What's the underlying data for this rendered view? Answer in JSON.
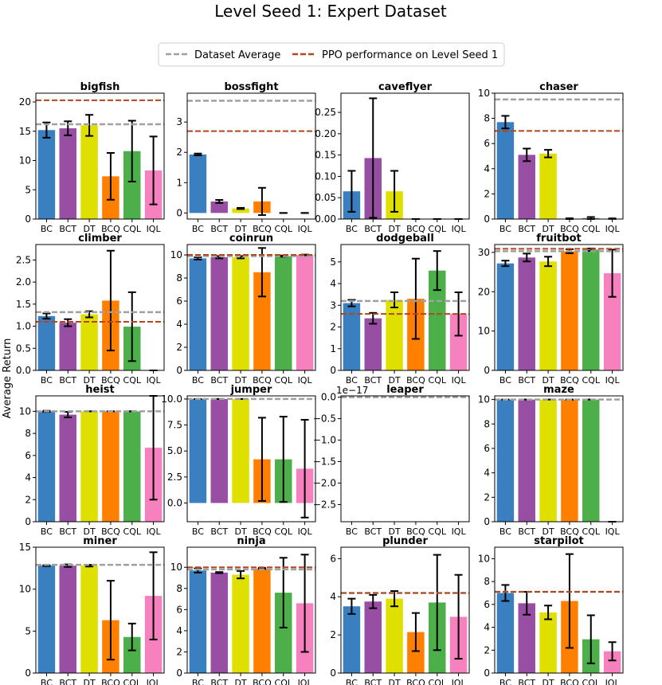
{
  "figure": {
    "title": "Level Seed 1: Expert Dataset",
    "ylabel": "Average Return",
    "legend": {
      "dataset_avg_label": "Dataset Average",
      "ppo_label": "PPO performance on Level Seed 1",
      "placement": "top-center"
    }
  },
  "colors": {
    "BC": "#3a7fbf",
    "BCT": "#984ea3",
    "DT": "#e0e000",
    "BCQ": "#ff7f00",
    "CQL": "#4daf4a",
    "IQL": "#f781bf",
    "dataset_avg_line": "#a0a0a0",
    "ppo_line": "#b5451b"
  },
  "chart_data": [
    {
      "type": "bar",
      "title": "bigfish",
      "categories": [
        "BC",
        "BCT",
        "DT",
        "BCQ",
        "CQL",
        "IQL"
      ],
      "values": [
        15.2,
        15.5,
        16.0,
        7.3,
        11.6,
        8.3
      ],
      "errors": [
        1.3,
        1.2,
        1.8,
        4.0,
        5.2,
        5.8
      ],
      "dataset_average": 16.2,
      "ppo": 20.3,
      "ylim": [
        0,
        21.5
      ],
      "yticks": [
        0,
        5,
        10,
        15,
        20
      ],
      "ytick_labels": [
        "0",
        "5",
        "10",
        "15",
        "20"
      ]
    },
    {
      "type": "bar",
      "title": "bossfight",
      "categories": [
        "BC",
        "BCT",
        "DT",
        "BCQ",
        "CQL",
        "IQL"
      ],
      "values": [
        1.93,
        0.38,
        0.15,
        0.38,
        0.0,
        0.0
      ],
      "errors": [
        0.03,
        0.05,
        0.02,
        0.45,
        0.0,
        0.0
      ],
      "dataset_average": 3.7,
      "ppo": 2.7,
      "ylim": [
        -0.2,
        3.95
      ],
      "yticks": [
        0,
        1,
        2,
        3
      ],
      "ytick_labels": [
        "0",
        "1",
        "2",
        "3"
      ]
    },
    {
      "type": "bar",
      "title": "caveflyer",
      "categories": [
        "BC",
        "BCT",
        "DT",
        "BCQ",
        "CQL",
        "IQL"
      ],
      "values": [
        0.065,
        0.143,
        0.065,
        0.0,
        0.0,
        0.0
      ],
      "errors": [
        0.048,
        0.14,
        0.048,
        0.0,
        0.0,
        0.0
      ],
      "dataset_average": null,
      "ppo": null,
      "ylim": [
        0,
        0.295
      ],
      "yticks": [
        0,
        0.05,
        0.1,
        0.15,
        0.2,
        0.25
      ],
      "ytick_labels": [
        "0.00",
        "0.05",
        "0.10",
        "0.15",
        "0.20",
        "0.25"
      ]
    },
    {
      "type": "bar",
      "title": "chaser",
      "categories": [
        "BC",
        "BCT",
        "DT",
        "BCQ",
        "CQL",
        "IQL"
      ],
      "values": [
        7.7,
        5.1,
        5.2,
        0.03,
        0.08,
        0.03
      ],
      "errors": [
        0.5,
        0.5,
        0.3,
        0.03,
        0.08,
        0.02
      ],
      "dataset_average": 9.5,
      "ppo": 7.0,
      "ylim": [
        0,
        10
      ],
      "yticks": [
        0,
        2,
        4,
        6,
        8,
        10
      ],
      "ytick_labels": [
        "0",
        "2",
        "4",
        "6",
        "8",
        "10"
      ]
    },
    {
      "type": "bar",
      "title": "climber",
      "categories": [
        "BC",
        "BCT",
        "DT",
        "BCQ",
        "CQL",
        "IQL"
      ],
      "values": [
        1.23,
        1.08,
        1.27,
        1.58,
        0.99,
        0.0
      ],
      "errors": [
        0.06,
        0.08,
        0.07,
        1.13,
        0.78,
        0.0
      ],
      "dataset_average": 1.32,
      "ppo": 1.1,
      "ylim": [
        0,
        2.85
      ],
      "yticks": [
        0,
        0.5,
        1,
        1.5,
        2,
        2.5
      ],
      "ytick_labels": [
        "0.0",
        "0.5",
        "1.0",
        "1.5",
        "2.0",
        "2.5"
      ]
    },
    {
      "type": "bar",
      "title": "coinrun",
      "categories": [
        "BC",
        "BCT",
        "DT",
        "BCQ",
        "CQL",
        "IQL"
      ],
      "values": [
        9.7,
        9.8,
        9.8,
        8.5,
        9.9,
        10.0
      ],
      "errors": [
        0.1,
        0.1,
        0.1,
        2.1,
        0.05,
        0.03
      ],
      "dataset_average": 9.9,
      "ppo": 10.0,
      "ylim": [
        0,
        10.9
      ],
      "yticks": [
        0,
        2,
        4,
        6,
        8,
        10
      ],
      "ytick_labels": [
        "0",
        "2",
        "4",
        "6",
        "8",
        "10"
      ]
    },
    {
      "type": "bar",
      "title": "dodgeball",
      "categories": [
        "BC",
        "BCT",
        "DT",
        "BCQ",
        "CQL",
        "IQL"
      ],
      "values": [
        3.1,
        2.4,
        3.25,
        3.3,
        4.6,
        2.6
      ],
      "errors": [
        0.15,
        0.25,
        0.35,
        1.85,
        0.9,
        1.0
      ],
      "dataset_average": 3.2,
      "ppo": 2.6,
      "ylim": [
        0,
        5.8
      ],
      "yticks": [
        0,
        1,
        2,
        3,
        4,
        5
      ],
      "ytick_labels": [
        "0",
        "1",
        "2",
        "3",
        "4",
        "5"
      ]
    },
    {
      "type": "bar",
      "title": "fruitbot",
      "categories": [
        "BC",
        "BCT",
        "DT",
        "BCQ",
        "CQL",
        "IQL"
      ],
      "values": [
        27.2,
        28.7,
        27.7,
        30.3,
        30.7,
        24.7
      ],
      "errors": [
        0.7,
        1.0,
        1.2,
        0.5,
        0.3,
        6.0
      ],
      "dataset_average": 30.3,
      "ppo": 30.9,
      "ylim": [
        0,
        32
      ],
      "yticks": [
        0,
        10,
        20,
        30
      ],
      "ytick_labels": [
        "0",
        "10",
        "20",
        "30"
      ]
    },
    {
      "type": "bar",
      "title": "heist",
      "categories": [
        "BC",
        "BCT",
        "DT",
        "BCQ",
        "CQL",
        "IQL"
      ],
      "values": [
        10.0,
        9.7,
        10.0,
        10.0,
        10.0,
        6.7
      ],
      "errors": [
        0.05,
        0.25,
        0.0,
        0.0,
        0.0,
        4.7
      ],
      "dataset_average": 10.0,
      "ppo": null,
      "ylim": [
        0,
        11.4
      ],
      "yticks": [
        0,
        2,
        4,
        6,
        8,
        10
      ],
      "ytick_labels": [
        "0",
        "2",
        "4",
        "6",
        "8",
        "10"
      ]
    },
    {
      "type": "bar",
      "title": "jumper",
      "categories": [
        "BC",
        "BCT",
        "DT",
        "BCQ",
        "CQL",
        "IQL"
      ],
      "values": [
        10.0,
        10.0,
        10.0,
        4.2,
        4.2,
        3.3
      ],
      "errors": [
        0.0,
        0.0,
        0.0,
        4.0,
        4.1,
        4.7
      ],
      "dataset_average": 10.0,
      "ppo": null,
      "ylim": [
        -1.8,
        10.3
      ],
      "yticks": [
        0,
        2.5,
        5,
        7.5,
        10
      ],
      "ytick_labels": [
        "0.0",
        "2.5",
        "5.0",
        "7.5",
        "10.0"
      ]
    },
    {
      "type": "bar",
      "title": "leaper",
      "categories": [
        "BC",
        "BCT",
        "DT",
        "BCQ",
        "CQL",
        "IQL"
      ],
      "values": [
        0,
        0,
        0,
        0,
        0,
        0
      ],
      "errors": [
        0,
        0,
        0,
        0,
        0,
        0
      ],
      "dataset_average": 0,
      "ppo": null,
      "ylim": [
        -2.9,
        0.03
      ],
      "yticks": [
        0,
        -0.5,
        -1,
        -1.5,
        -2,
        -2.5
      ],
      "ytick_labels": [
        "0.0",
        "−0.5",
        "−1.0",
        "−1.5",
        "−2.0",
        "−2.5"
      ],
      "offset_label": "1e−17"
    },
    {
      "type": "bar",
      "title": "maze",
      "categories": [
        "BC",
        "BCT",
        "DT",
        "BCQ",
        "CQL",
        "IQL"
      ],
      "values": [
        10.0,
        10.0,
        10.0,
        10.0,
        10.0,
        0.0
      ],
      "errors": [
        0.0,
        0.0,
        0.0,
        0.0,
        0.0,
        0.0
      ],
      "dataset_average": 10.0,
      "ppo": null,
      "ylim": [
        0,
        10.3
      ],
      "yticks": [
        0,
        2,
        4,
        6,
        8,
        10
      ],
      "ytick_labels": [
        "0",
        "2",
        "4",
        "6",
        "8",
        "10"
      ]
    },
    {
      "type": "bar",
      "title": "miner",
      "categories": [
        "BC",
        "BCT",
        "DT",
        "BCQ",
        "CQL",
        "IQL"
      ],
      "values": [
        12.8,
        12.8,
        12.8,
        6.3,
        4.3,
        9.2
      ],
      "errors": [
        0.05,
        0.15,
        0.1,
        4.7,
        1.6,
        5.2
      ],
      "dataset_average": 12.9,
      "ppo": null,
      "ylim": [
        0,
        15
      ],
      "yticks": [
        0,
        5,
        10,
        15
      ],
      "ytick_labels": [
        "0",
        "5",
        "10",
        "15"
      ]
    },
    {
      "type": "bar",
      "title": "ninja",
      "categories": [
        "BC",
        "BCT",
        "DT",
        "BCQ",
        "CQL",
        "IQL"
      ],
      "values": [
        9.7,
        9.5,
        9.3,
        9.9,
        7.6,
        6.6
      ],
      "errors": [
        0.2,
        0.05,
        0.35,
        0.05,
        3.3,
        4.6
      ],
      "dataset_average": 9.8,
      "ppo": 10.0,
      "ylim": [
        0,
        11.9
      ],
      "yticks": [
        0,
        2,
        4,
        6,
        8,
        10
      ],
      "ytick_labels": [
        "0",
        "2",
        "4",
        "6",
        "8",
        "10"
      ]
    },
    {
      "type": "bar",
      "title": "plunder",
      "categories": [
        "BC",
        "BCT",
        "DT",
        "BCQ",
        "CQL",
        "IQL"
      ],
      "values": [
        3.5,
        3.75,
        3.9,
        2.15,
        3.7,
        2.95
      ],
      "errors": [
        0.4,
        0.35,
        0.4,
        1.0,
        2.5,
        2.2
      ],
      "dataset_average": 4.2,
      "ppo": 4.2,
      "ylim": [
        0,
        6.6
      ],
      "yticks": [
        0,
        2,
        4,
        6
      ],
      "ytick_labels": [
        "0",
        "2",
        "4",
        "6"
      ]
    },
    {
      "type": "bar",
      "title": "starpilot",
      "categories": [
        "BC",
        "BCT",
        "DT",
        "BCQ",
        "CQL",
        "IQL"
      ],
      "values": [
        7.0,
        6.1,
        5.3,
        6.3,
        2.95,
        1.9
      ],
      "errors": [
        0.7,
        1.0,
        0.6,
        4.1,
        2.1,
        0.8
      ],
      "dataset_average": 7.1,
      "ppo": 7.1,
      "ylim": [
        0,
        11
      ],
      "yticks": [
        0,
        2,
        4,
        6,
        8,
        10
      ],
      "ytick_labels": [
        "0",
        "2",
        "4",
        "6",
        "8",
        "10"
      ]
    }
  ]
}
